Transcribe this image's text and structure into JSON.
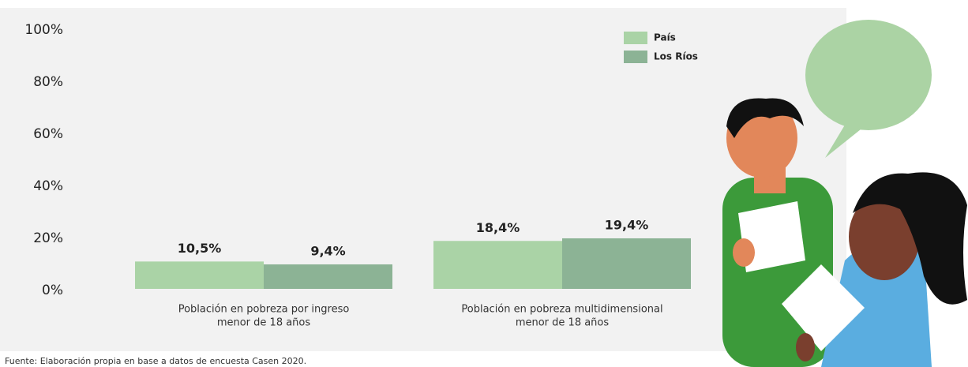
{
  "chart_data": {
    "type": "bar",
    "categories": [
      [
        "Población en pobreza por ingreso",
        "menor de 18 años"
      ],
      [
        "Población en pobreza multidimensional",
        "menor de 18 años"
      ]
    ],
    "series": [
      {
        "name": "País",
        "color": "#aad3a6",
        "values": [
          10.5,
          18.4
        ],
        "value_labels": [
          "10,5%",
          "18,4%"
        ]
      },
      {
        "name": "Los Ríos",
        "color": "#8cb395",
        "values": [
          9.4,
          19.4
        ],
        "value_labels": [
          "9,4%",
          "19,4%"
        ]
      }
    ],
    "ylim": [
      0,
      100
    ],
    "yticks": [
      {
        "value": 0,
        "label": "0%"
      },
      {
        "value": 20,
        "label": "20%"
      },
      {
        "value": 40,
        "label": "40%"
      },
      {
        "value": 60,
        "label": "60%"
      },
      {
        "value": 80,
        "label": "80%"
      },
      {
        "value": 100,
        "label": "100%"
      }
    ],
    "grid": false,
    "legend": "top-right",
    "source": "Fuente: Elaboración propia en base a datos de encuesta Casen 2020."
  }
}
